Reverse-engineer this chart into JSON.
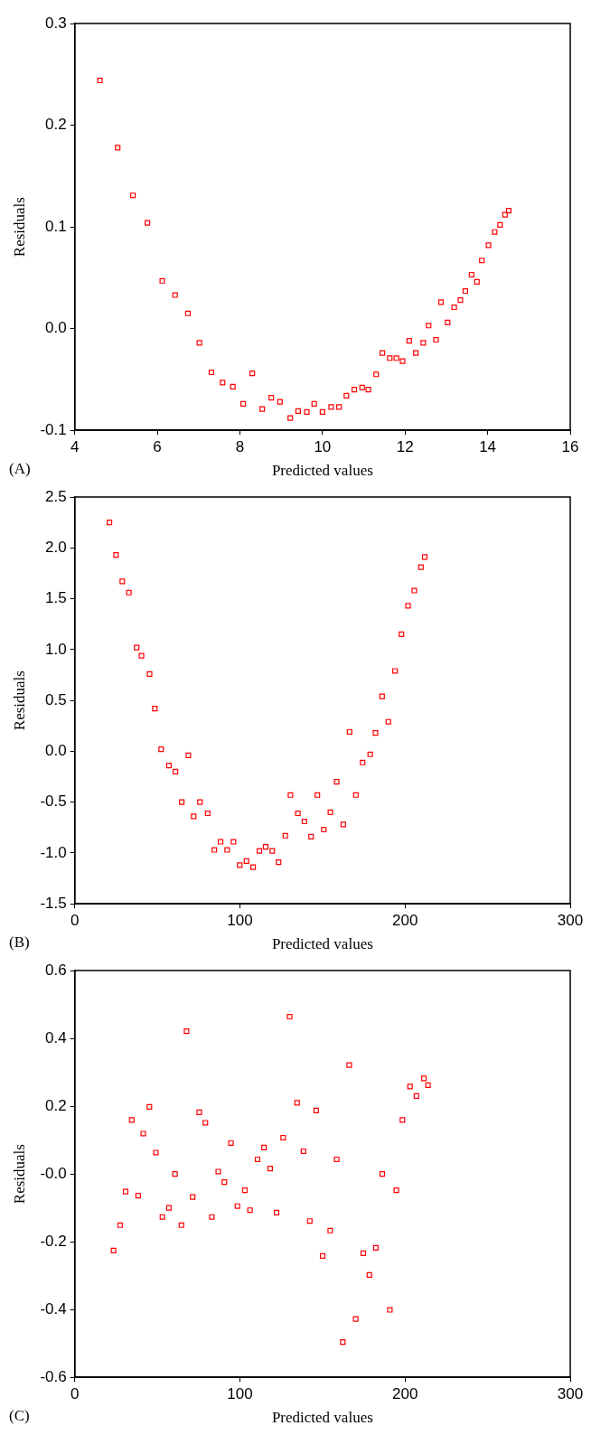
{
  "chart_data": [
    {
      "type": "scatter",
      "xlabel": "Predicted values",
      "ylabel": "Residuals",
      "color": "#ff0000",
      "marker": "square",
      "annotations": [
        "(A)"
      ],
      "xlim": [
        4,
        16
      ],
      "xticks": [
        4,
        6,
        8,
        10,
        12,
        14,
        16
      ],
      "ylim": [
        -0.1,
        0.3
      ],
      "yticks": [
        -0.1,
        {
          "value": 0,
          "label": "0.0"
        },
        0.1,
        0.2,
        0.3
      ],
      "x": [
        4.61,
        5.04,
        5.41,
        5.76,
        6.12,
        6.43,
        6.74,
        7.02,
        7.31,
        7.58,
        7.83,
        8.08,
        8.3,
        8.54,
        8.76,
        8.97,
        9.22,
        9.41,
        9.62,
        9.8,
        10.0,
        10.21,
        10.4,
        10.58,
        10.77,
        10.96,
        11.11,
        11.3,
        11.45,
        11.63,
        11.79,
        11.94,
        12.1,
        12.26,
        12.44,
        12.57,
        12.75,
        12.87,
        13.03,
        13.19,
        13.34,
        13.46,
        13.61,
        13.74,
        13.86,
        14.02,
        14.17,
        14.3,
        14.42,
        14.51
      ],
      "values": [
        0.244,
        0.178,
        0.131,
        0.104,
        0.047,
        0.033,
        0.015,
        -0.014,
        -0.043,
        -0.053,
        -0.057,
        -0.074,
        -0.044,
        -0.079,
        -0.068,
        -0.072,
        -0.088,
        -0.081,
        -0.082,
        -0.074,
        -0.082,
        -0.077,
        -0.077,
        -0.066,
        -0.06,
        -0.058,
        -0.06,
        -0.045,
        -0.024,
        -0.029,
        -0.029,
        -0.032,
        -0.012,
        -0.024,
        -0.014,
        0.003,
        -0.011,
        0.026,
        0.006,
        0.021,
        0.028,
        0.037,
        0.053,
        0.046,
        0.067,
        0.082,
        0.095,
        0.102,
        0.112,
        0.116
      ]
    },
    {
      "type": "scatter",
      "xlabel": "Predicted values",
      "ylabel": "Residuals",
      "color": "#ff0000",
      "marker": "square",
      "annotations": [
        "(B)"
      ],
      "xlim": [
        0,
        300
      ],
      "xticks": [
        0,
        100,
        200,
        300
      ],
      "ylim": [
        -1.5,
        2.5
      ],
      "yticks": [
        -1.5,
        {
          "value": -1,
          "label": "-1.0"
        },
        -0.5,
        {
          "value": 0,
          "label": "0.0"
        },
        0.5,
        {
          "value": 1,
          "label": "1.0"
        },
        1.5,
        {
          "value": 2,
          "label": "2.0"
        },
        2.5
      ],
      "x": [
        21.0,
        25.0,
        28.8,
        32.8,
        37.5,
        40.4,
        45.3,
        48.5,
        52.3,
        57.0,
        61.0,
        64.8,
        68.8,
        72.0,
        75.8,
        80.5,
        84.5,
        88.3,
        92.3,
        96.1,
        99.9,
        104.0,
        108.0,
        111.8,
        115.6,
        119.6,
        123.4,
        127.5,
        130.6,
        135.1,
        139.1,
        143.1,
        146.9,
        150.8,
        154.8,
        158.6,
        162.6,
        166.4,
        170.2,
        174.3,
        178.9,
        182.1,
        186.1,
        189.9,
        193.9,
        197.8,
        201.8,
        205.6,
        209.6,
        211.9
      ],
      "values": [
        2.25,
        1.93,
        1.67,
        1.56,
        1.02,
        0.94,
        0.76,
        0.42,
        0.02,
        -0.14,
        -0.2,
        -0.5,
        -0.04,
        -0.64,
        -0.5,
        -0.61,
        -0.97,
        -0.89,
        -0.97,
        -0.89,
        -1.12,
        -1.08,
        -1.14,
        -0.98,
        -0.94,
        -0.98,
        -1.09,
        -0.83,
        -0.43,
        -0.61,
        -0.69,
        -0.84,
        -0.43,
        -0.77,
        -0.6,
        -0.3,
        -0.72,
        0.19,
        -0.43,
        -0.11,
        -0.03,
        0.18,
        0.54,
        0.29,
        0.79,
        1.15,
        1.43,
        1.58,
        1.81,
        1.91
      ]
    },
    {
      "type": "scatter",
      "xlabel": "Predicted values",
      "ylabel": "Residuals",
      "color": "#ff0000",
      "marker": "square",
      "annotations": [
        "(C)"
      ],
      "xlim": [
        0,
        300
      ],
      "xticks": [
        0,
        100,
        200,
        300
      ],
      "ylim": [
        -0.6,
        0.6
      ],
      "yticks": [
        -0.6,
        -0.4,
        -0.2,
        {
          "value": 0,
          "label": "-0.0"
        },
        0.2,
        0.4,
        0.6
      ],
      "x": [
        23.5,
        27.5,
        30.8,
        34.5,
        38.4,
        41.5,
        45.2,
        49.1,
        53.1,
        57.0,
        60.7,
        64.6,
        67.7,
        71.4,
        75.4,
        79.1,
        83.0,
        86.9,
        90.6,
        94.6,
        98.5,
        103.0,
        106.1,
        110.7,
        114.6,
        118.3,
        122.2,
        126.2,
        130.1,
        134.6,
        138.5,
        142.3,
        146.2,
        150.1,
        154.7,
        158.6,
        162.3,
        166.2,
        170.1,
        174.7,
        178.4,
        182.3,
        186.2,
        190.8,
        194.7,
        198.4,
        203.0,
        206.9,
        211.4,
        213.9
      ],
      "values": [
        -0.226,
        -0.151,
        -0.052,
        0.159,
        -0.064,
        0.119,
        0.198,
        0.063,
        -0.127,
        -0.1,
        0.0,
        -0.151,
        0.421,
        -0.068,
        0.182,
        0.151,
        -0.127,
        0.007,
        -0.024,
        0.091,
        -0.095,
        -0.048,
        -0.107,
        0.043,
        0.078,
        0.016,
        -0.114,
        0.107,
        0.464,
        0.21,
        0.067,
        -0.139,
        0.187,
        -0.242,
        -0.167,
        0.043,
        -0.496,
        0.321,
        -0.428,
        -0.234,
        -0.298,
        -0.218,
        0.0,
        -0.401,
        -0.048,
        0.159,
        0.258,
        0.23,
        0.282,
        0.262
      ]
    }
  ]
}
